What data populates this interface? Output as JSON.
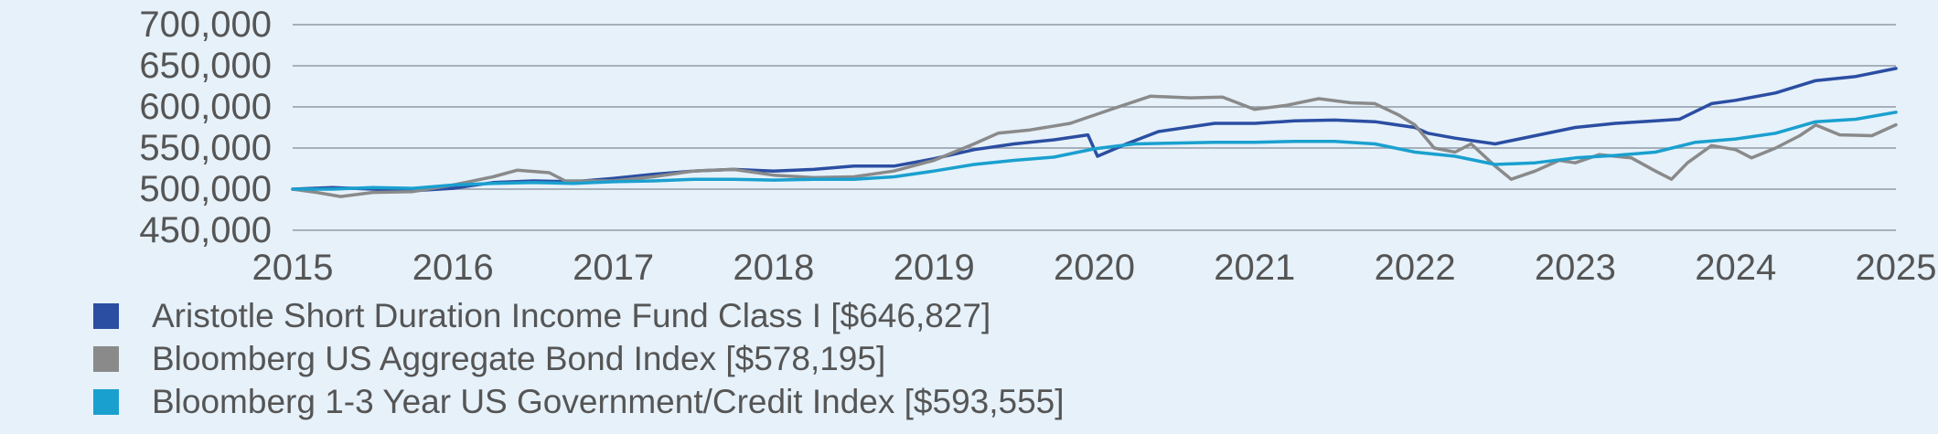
{
  "chart_data": {
    "type": "line",
    "title": "",
    "xlabel": "",
    "ylabel": "",
    "xlim": [
      2015,
      2025
    ],
    "ylim": [
      450000,
      700000
    ],
    "x_ticks": [
      "2015",
      "2016",
      "2017",
      "2018",
      "2019",
      "2020",
      "2021",
      "2022",
      "2023",
      "2024",
      "2025"
    ],
    "y_ticks": [
      "450,000",
      "500,000",
      "550,000",
      "600,000",
      "650,000",
      "700,000"
    ],
    "grid": "horizontal",
    "legend_position": "bottom",
    "series": [
      {
        "name": "Aristotle Short Duration Income Fund Class I [$646,827]",
        "color": "#2b4ea2",
        "points": [
          [
            2015.0,
            500000
          ],
          [
            2015.25,
            502000
          ],
          [
            2015.5,
            500000
          ],
          [
            2015.75,
            498000
          ],
          [
            2016.0,
            501000
          ],
          [
            2016.25,
            508000
          ],
          [
            2016.5,
            510000
          ],
          [
            2016.75,
            509000
          ],
          [
            2017.0,
            513000
          ],
          [
            2017.25,
            518000
          ],
          [
            2017.5,
            522000
          ],
          [
            2017.75,
            524000
          ],
          [
            2018.0,
            522000
          ],
          [
            2018.25,
            524000
          ],
          [
            2018.5,
            528000
          ],
          [
            2018.75,
            528000
          ],
          [
            2019.0,
            537000
          ],
          [
            2019.25,
            548000
          ],
          [
            2019.5,
            555000
          ],
          [
            2019.75,
            560000
          ],
          [
            2019.96,
            566000
          ],
          [
            2020.02,
            540000
          ],
          [
            2020.2,
            555000
          ],
          [
            2020.4,
            570000
          ],
          [
            2020.75,
            580000
          ],
          [
            2021.0,
            580000
          ],
          [
            2021.25,
            583000
          ],
          [
            2021.5,
            584000
          ],
          [
            2021.75,
            582000
          ],
          [
            2022.0,
            575000
          ],
          [
            2022.08,
            568000
          ],
          [
            2022.25,
            562000
          ],
          [
            2022.5,
            555000
          ],
          [
            2022.75,
            565000
          ],
          [
            2023.0,
            575000
          ],
          [
            2023.25,
            580000
          ],
          [
            2023.5,
            583000
          ],
          [
            2023.65,
            585000
          ],
          [
            2023.85,
            604000
          ],
          [
            2024.0,
            608000
          ],
          [
            2024.25,
            617000
          ],
          [
            2024.5,
            632000
          ],
          [
            2024.75,
            637000
          ],
          [
            2025.0,
            646827
          ]
        ]
      },
      {
        "name": "Bloomberg US Aggregate Bond Index [$578,195]",
        "color": "#8a8a8a",
        "points": [
          [
            2015.0,
            500000
          ],
          [
            2015.15,
            496000
          ],
          [
            2015.3,
            491000
          ],
          [
            2015.5,
            496000
          ],
          [
            2015.75,
            497000
          ],
          [
            2016.0,
            505000
          ],
          [
            2016.25,
            515000
          ],
          [
            2016.4,
            523000
          ],
          [
            2016.6,
            520000
          ],
          [
            2016.7,
            510000
          ],
          [
            2017.0,
            510000
          ],
          [
            2017.25,
            515000
          ],
          [
            2017.5,
            522000
          ],
          [
            2017.75,
            524000
          ],
          [
            2018.0,
            517000
          ],
          [
            2018.25,
            514000
          ],
          [
            2018.5,
            515000
          ],
          [
            2018.75,
            522000
          ],
          [
            2019.0,
            535000
          ],
          [
            2019.25,
            555000
          ],
          [
            2019.4,
            568000
          ],
          [
            2019.6,
            572000
          ],
          [
            2019.85,
            580000
          ],
          [
            2020.0,
            590000
          ],
          [
            2020.15,
            600000
          ],
          [
            2020.35,
            613000
          ],
          [
            2020.6,
            611000
          ],
          [
            2020.8,
            612000
          ],
          [
            2021.0,
            597000
          ],
          [
            2021.2,
            602000
          ],
          [
            2021.4,
            610000
          ],
          [
            2021.6,
            605000
          ],
          [
            2021.75,
            604000
          ],
          [
            2021.9,
            590000
          ],
          [
            2022.0,
            578000
          ],
          [
            2022.12,
            550000
          ],
          [
            2022.25,
            545000
          ],
          [
            2022.35,
            555000
          ],
          [
            2022.5,
            528000
          ],
          [
            2022.6,
            512000
          ],
          [
            2022.75,
            522000
          ],
          [
            2022.9,
            535000
          ],
          [
            2023.0,
            532000
          ],
          [
            2023.15,
            542000
          ],
          [
            2023.35,
            538000
          ],
          [
            2023.5,
            522000
          ],
          [
            2023.6,
            512000
          ],
          [
            2023.7,
            532000
          ],
          [
            2023.85,
            553000
          ],
          [
            2024.0,
            548000
          ],
          [
            2024.1,
            538000
          ],
          [
            2024.25,
            550000
          ],
          [
            2024.4,
            565000
          ],
          [
            2024.5,
            578000
          ],
          [
            2024.65,
            566000
          ],
          [
            2024.85,
            565000
          ],
          [
            2025.0,
            578195
          ]
        ]
      },
      {
        "name": "Bloomberg 1-3 Year US Government/Credit Index [$593,555]",
        "color": "#1aa0cf",
        "points": [
          [
            2015.0,
            500000
          ],
          [
            2015.25,
            500000
          ],
          [
            2015.5,
            502000
          ],
          [
            2015.75,
            501000
          ],
          [
            2016.0,
            505000
          ],
          [
            2016.25,
            507000
          ],
          [
            2016.5,
            508000
          ],
          [
            2016.75,
            507000
          ],
          [
            2017.0,
            509000
          ],
          [
            2017.25,
            510000
          ],
          [
            2017.5,
            512000
          ],
          [
            2017.75,
            512000
          ],
          [
            2018.0,
            511000
          ],
          [
            2018.25,
            512000
          ],
          [
            2018.5,
            512000
          ],
          [
            2018.75,
            515000
          ],
          [
            2019.0,
            522000
          ],
          [
            2019.25,
            530000
          ],
          [
            2019.5,
            535000
          ],
          [
            2019.75,
            539000
          ],
          [
            2020.0,
            549000
          ],
          [
            2020.25,
            555000
          ],
          [
            2020.5,
            556000
          ],
          [
            2020.75,
            557000
          ],
          [
            2021.0,
            557000
          ],
          [
            2021.25,
            558000
          ],
          [
            2021.5,
            558000
          ],
          [
            2021.75,
            555000
          ],
          [
            2022.0,
            545000
          ],
          [
            2022.25,
            540000
          ],
          [
            2022.5,
            530000
          ],
          [
            2022.75,
            532000
          ],
          [
            2023.0,
            538000
          ],
          [
            2023.25,
            541000
          ],
          [
            2023.5,
            545000
          ],
          [
            2023.75,
            557000
          ],
          [
            2024.0,
            561000
          ],
          [
            2024.25,
            568000
          ],
          [
            2024.5,
            582000
          ],
          [
            2024.75,
            585000
          ],
          [
            2025.0,
            593555
          ]
        ]
      }
    ]
  }
}
